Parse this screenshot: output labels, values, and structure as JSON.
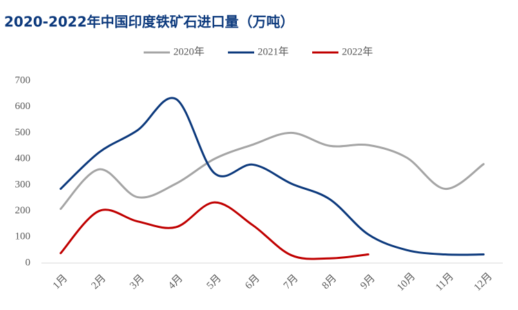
{
  "chart_data": {
    "type": "line",
    "title": "2020-2022年中国印度铁矿石进口量（万吨）",
    "categories": [
      "1月",
      "2月",
      "3月",
      "4月",
      "5月",
      "6月",
      "7月",
      "8月",
      "9月",
      "10月",
      "11月",
      "12月"
    ],
    "series": [
      {
        "name": "2020年",
        "color": "#a5a5a5",
        "values": [
          208,
          360,
          253,
          305,
          400,
          455,
          500,
          450,
          453,
          405,
          285,
          380
        ]
      },
      {
        "name": "2021年",
        "color": "#0d3a7d",
        "values": [
          285,
          425,
          510,
          630,
          345,
          378,
          305,
          245,
          110,
          50,
          33,
          33
        ]
      },
      {
        "name": "2022年",
        "color": "#c00000",
        "values": [
          38,
          200,
          160,
          138,
          233,
          145,
          30,
          18,
          33,
          null,
          null,
          null
        ]
      }
    ],
    "ylim": [
      0,
      700
    ],
    "yticks": [
      0,
      100,
      200,
      300,
      400,
      500,
      600,
      700
    ],
    "legend": "top"
  }
}
